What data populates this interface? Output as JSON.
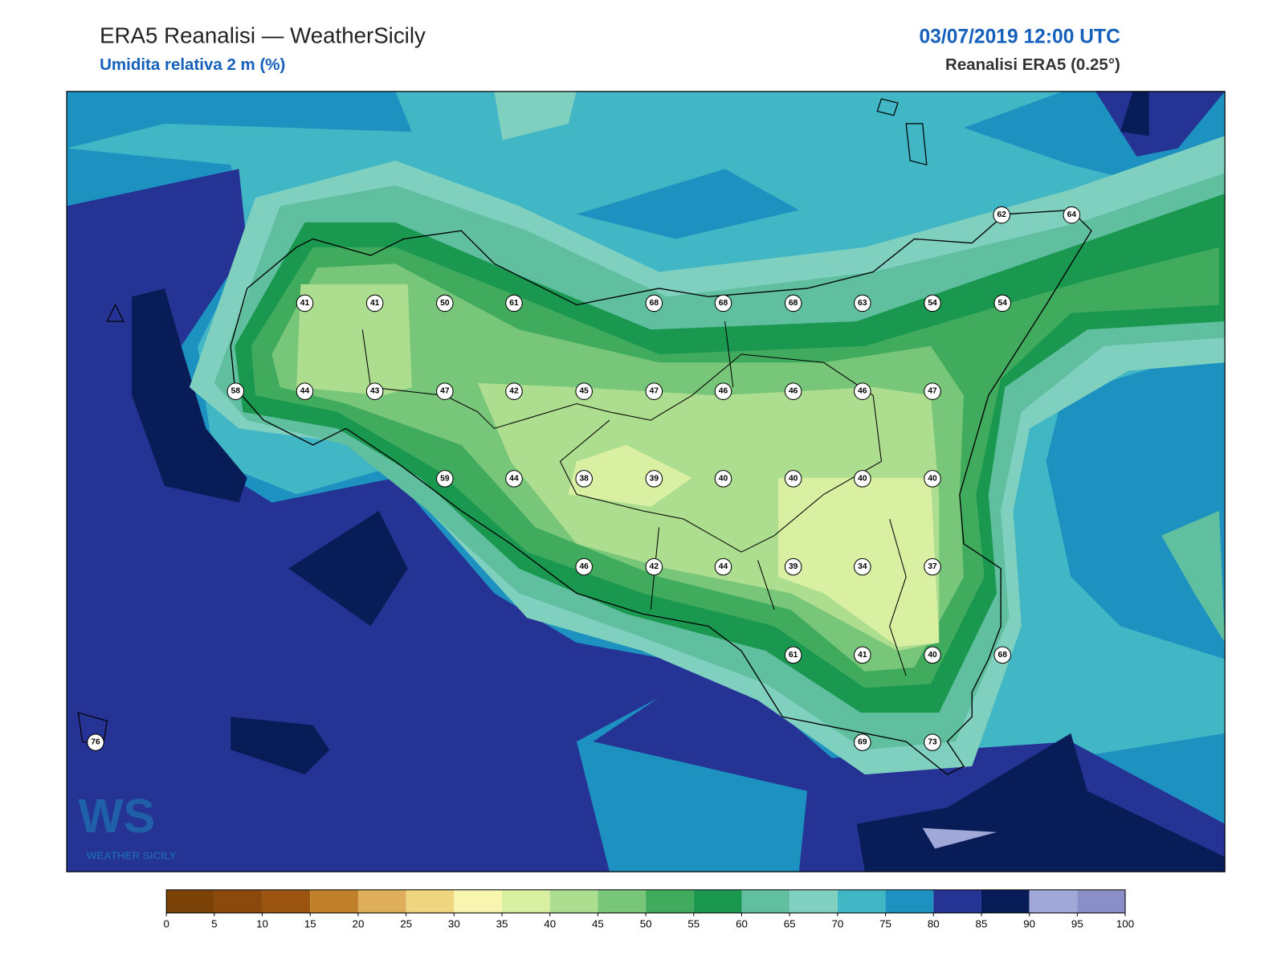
{
  "header": {
    "title": "ERA5 Reanalisi — WeatherSicily",
    "subtitle": "Umidita relativa 2 m (%)",
    "datetime": "03/07/2019 12:00 UTC",
    "source": "Reanalisi ERA5 (0.25°)"
  },
  "logo": {
    "mark": "WS",
    "text": "WEATHER SICILY"
  },
  "stations": [
    41,
    41,
    50,
    61,
    68,
    68,
    68,
    63,
    54,
    54,
    62,
    64,
    58,
    44,
    43,
    47,
    42,
    45,
    47,
    46,
    46,
    46,
    47,
    59,
    44,
    38,
    39,
    40,
    40,
    40,
    40,
    46,
    42,
    44,
    39,
    34,
    37,
    61,
    41,
    40,
    68,
    76,
    69,
    73
  ],
  "colorbar": {
    "levels": [
      0,
      5,
      10,
      15,
      20,
      25,
      30,
      35,
      40,
      45,
      50,
      55,
      60,
      65,
      70,
      75,
      80,
      85,
      90,
      95,
      100
    ],
    "colors": [
      "#7a4206",
      "#8b4a0c",
      "#9c5510",
      "#c0802a",
      "#dfae5a",
      "#f0d580",
      "#f7f5b0",
      "#d9f0a3",
      "#addd8e",
      "#78c679",
      "#41ab5d",
      "#1a9850",
      "#5fbf9f",
      "#80d0c0",
      "#41b6c4",
      "#1d91c0",
      "#253494",
      "#081d58",
      "#a0a8d8",
      "#8b8fc8"
    ]
  }
}
